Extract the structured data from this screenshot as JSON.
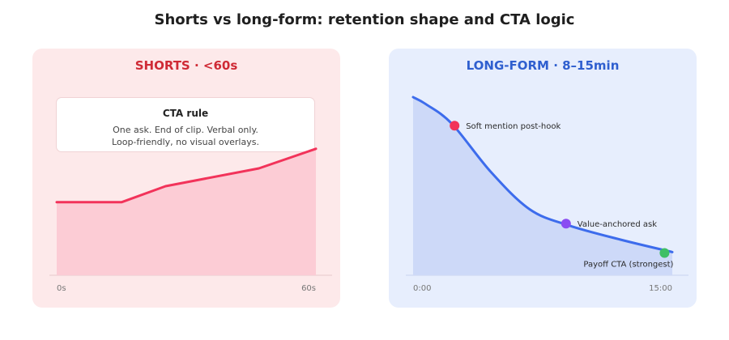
{
  "title": "Shorts vs long-form: retention shape and CTA logic",
  "shorts": {
    "heading": "SHORTS · <60s",
    "cta_rule": {
      "title": "CTA rule",
      "line1": "One ask. End of clip. Verbal only.",
      "line2": "Loop-friendly, no visual overlays."
    },
    "x_start_label": "0s",
    "x_end_label": "60s",
    "line_color": "#f2335a",
    "fill_color": "#fcccd5",
    "retention": [
      {
        "t": 0,
        "r": 0.41
      },
      {
        "t": 0.25,
        "r": 0.41
      },
      {
        "t": 0.42,
        "r": 0.5
      },
      {
        "t": 0.78,
        "r": 0.6
      },
      {
        "t": 1.0,
        "r": 0.71
      }
    ]
  },
  "longform": {
    "heading": "LONG-FORM · 8–15min",
    "x_start_label": "0:00",
    "x_end_label": "15:00",
    "line_color": "#3d6cec",
    "fill_color": "#cdd9f8",
    "retention": [
      {
        "t": 0,
        "r": 1.0
      },
      {
        "t": 0.05,
        "r": 0.96
      },
      {
        "t": 0.15,
        "r": 0.85
      },
      {
        "t": 0.3,
        "r": 0.58
      },
      {
        "t": 0.45,
        "r": 0.37
      },
      {
        "t": 0.6,
        "r": 0.28
      },
      {
        "t": 0.8,
        "r": 0.2
      },
      {
        "t": 1.0,
        "r": 0.13
      }
    ],
    "markers": [
      {
        "label": "Soft mention post-hook",
        "t": 0.16,
        "r": 0.84,
        "color": "#f2335a",
        "label_side": "right"
      },
      {
        "label": "Value-anchored ask",
        "t": 0.59,
        "r": 0.29,
        "color": "#8a4cf2",
        "label_side": "right"
      },
      {
        "label": "Payoff CTA (strongest)",
        "t": 0.97,
        "r": 0.125,
        "color": "#3fbf66",
        "label_side": "below"
      }
    ]
  }
}
